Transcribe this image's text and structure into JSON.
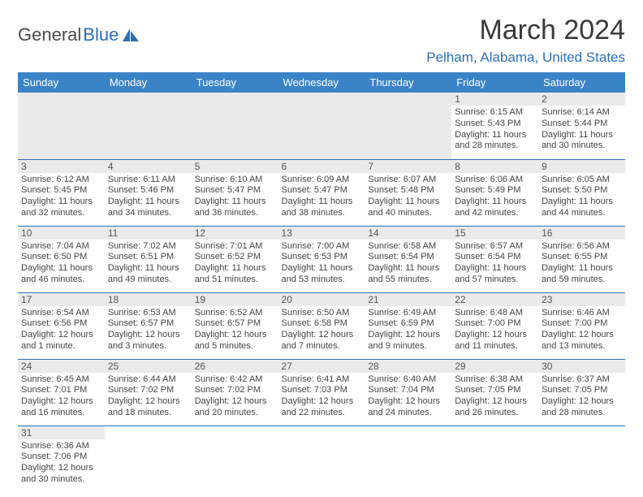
{
  "logo": {
    "text1": "General",
    "text2": "Blue"
  },
  "title": "March 2024",
  "location": "Pelham, Alabama, United States",
  "colors": {
    "header_bg": "#3b83c7",
    "header_fg": "#ffffff",
    "accent": "#2d6fb5",
    "grey_bg": "#eaeaea",
    "text": "#444444"
  },
  "weekdays": [
    "Sunday",
    "Monday",
    "Tuesday",
    "Wednesday",
    "Thursday",
    "Friday",
    "Saturday"
  ],
  "weeks": [
    [
      null,
      null,
      null,
      null,
      null,
      {
        "n": "1",
        "sr": "6:15 AM",
        "ss": "5:43 PM",
        "dl": "11 hours and 28 minutes."
      },
      {
        "n": "2",
        "sr": "6:14 AM",
        "ss": "5:44 PM",
        "dl": "11 hours and 30 minutes."
      }
    ],
    [
      {
        "n": "3",
        "sr": "6:12 AM",
        "ss": "5:45 PM",
        "dl": "11 hours and 32 minutes."
      },
      {
        "n": "4",
        "sr": "6:11 AM",
        "ss": "5:46 PM",
        "dl": "11 hours and 34 minutes."
      },
      {
        "n": "5",
        "sr": "6:10 AM",
        "ss": "5:47 PM",
        "dl": "11 hours and 36 minutes."
      },
      {
        "n": "6",
        "sr": "6:09 AM",
        "ss": "5:47 PM",
        "dl": "11 hours and 38 minutes."
      },
      {
        "n": "7",
        "sr": "6:07 AM",
        "ss": "5:48 PM",
        "dl": "11 hours and 40 minutes."
      },
      {
        "n": "8",
        "sr": "6:06 AM",
        "ss": "5:49 PM",
        "dl": "11 hours and 42 minutes."
      },
      {
        "n": "9",
        "sr": "6:05 AM",
        "ss": "5:50 PM",
        "dl": "11 hours and 44 minutes."
      }
    ],
    [
      {
        "n": "10",
        "sr": "7:04 AM",
        "ss": "6:50 PM",
        "dl": "11 hours and 46 minutes."
      },
      {
        "n": "11",
        "sr": "7:02 AM",
        "ss": "6:51 PM",
        "dl": "11 hours and 49 minutes."
      },
      {
        "n": "12",
        "sr": "7:01 AM",
        "ss": "6:52 PM",
        "dl": "11 hours and 51 minutes."
      },
      {
        "n": "13",
        "sr": "7:00 AM",
        "ss": "6:53 PM",
        "dl": "11 hours and 53 minutes."
      },
      {
        "n": "14",
        "sr": "6:58 AM",
        "ss": "6:54 PM",
        "dl": "11 hours and 55 minutes."
      },
      {
        "n": "15",
        "sr": "6:57 AM",
        "ss": "6:54 PM",
        "dl": "11 hours and 57 minutes."
      },
      {
        "n": "16",
        "sr": "6:56 AM",
        "ss": "6:55 PM",
        "dl": "11 hours and 59 minutes."
      }
    ],
    [
      {
        "n": "17",
        "sr": "6:54 AM",
        "ss": "6:56 PM",
        "dl": "12 hours and 1 minute."
      },
      {
        "n": "18",
        "sr": "6:53 AM",
        "ss": "6:57 PM",
        "dl": "12 hours and 3 minutes."
      },
      {
        "n": "19",
        "sr": "6:52 AM",
        "ss": "6:57 PM",
        "dl": "12 hours and 5 minutes."
      },
      {
        "n": "20",
        "sr": "6:50 AM",
        "ss": "6:58 PM",
        "dl": "12 hours and 7 minutes."
      },
      {
        "n": "21",
        "sr": "6:49 AM",
        "ss": "6:59 PM",
        "dl": "12 hours and 9 minutes."
      },
      {
        "n": "22",
        "sr": "6:48 AM",
        "ss": "7:00 PM",
        "dl": "12 hours and 11 minutes."
      },
      {
        "n": "23",
        "sr": "6:46 AM",
        "ss": "7:00 PM",
        "dl": "12 hours and 13 minutes."
      }
    ],
    [
      {
        "n": "24",
        "sr": "6:45 AM",
        "ss": "7:01 PM",
        "dl": "12 hours and 16 minutes."
      },
      {
        "n": "25",
        "sr": "6:44 AM",
        "ss": "7:02 PM",
        "dl": "12 hours and 18 minutes."
      },
      {
        "n": "26",
        "sr": "6:42 AM",
        "ss": "7:02 PM",
        "dl": "12 hours and 20 minutes."
      },
      {
        "n": "27",
        "sr": "6:41 AM",
        "ss": "7:03 PM",
        "dl": "12 hours and 22 minutes."
      },
      {
        "n": "28",
        "sr": "6:40 AM",
        "ss": "7:04 PM",
        "dl": "12 hours and 24 minutes."
      },
      {
        "n": "29",
        "sr": "6:38 AM",
        "ss": "7:05 PM",
        "dl": "12 hours and 26 minutes."
      },
      {
        "n": "30",
        "sr": "6:37 AM",
        "ss": "7:05 PM",
        "dl": "12 hours and 28 minutes."
      }
    ],
    [
      {
        "n": "31",
        "sr": "6:36 AM",
        "ss": "7:06 PM",
        "dl": "12 hours and 30 minutes."
      },
      null,
      null,
      null,
      null,
      null,
      null
    ]
  ],
  "labels": {
    "sunrise": "Sunrise:",
    "sunset": "Sunset:",
    "daylight": "Daylight:"
  }
}
